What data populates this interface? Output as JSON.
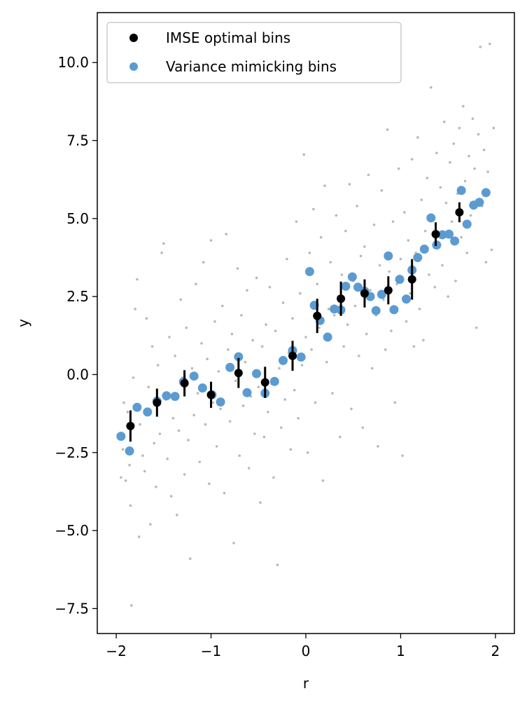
{
  "chart_data": {
    "type": "scatter",
    "xlabel": "r",
    "ylabel": "y",
    "xlim": [
      -2.2,
      2.2
    ],
    "ylim": [
      -8.3,
      11.6
    ],
    "x_ticks": [
      -2,
      -1,
      0,
      1,
      2
    ],
    "x_tick_labels": [
      "−2",
      "−1",
      "0",
      "1",
      "2"
    ],
    "y_ticks": [
      -7.5,
      -5.0,
      -2.5,
      0.0,
      2.5,
      5.0,
      7.5,
      10.0
    ],
    "y_tick_labels": [
      "−7.5",
      "−5.0",
      "−2.5",
      "0.0",
      "2.5",
      "5.0",
      "7.5",
      "10.0"
    ],
    "grid": false,
    "legend": {
      "position": "top-left",
      "entries": [
        "IMSE optimal bins",
        "Variance mimicking bins"
      ]
    },
    "series": [
      {
        "name": "IMSE optimal bins",
        "color": "#000000",
        "points": [
          {
            "x": -1.85,
            "y": -1.65,
            "yerr": 0.5
          },
          {
            "x": -1.57,
            "y": -0.9,
            "yerr": 0.45
          },
          {
            "x": -1.28,
            "y": -0.28,
            "yerr": 0.42
          },
          {
            "x": -1.0,
            "y": -0.65,
            "yerr": 0.42
          },
          {
            "x": -0.71,
            "y": 0.05,
            "yerr": 0.48
          },
          {
            "x": -0.43,
            "y": -0.25,
            "yerr": 0.5
          },
          {
            "x": -0.14,
            "y": 0.6,
            "yerr": 0.48
          },
          {
            "x": 0.12,
            "y": 1.88,
            "yerr": 0.55
          },
          {
            "x": 0.37,
            "y": 2.43,
            "yerr": 0.55
          },
          {
            "x": 0.62,
            "y": 2.6,
            "yerr": 0.45
          },
          {
            "x": 0.87,
            "y": 2.7,
            "yerr": 0.45
          },
          {
            "x": 1.12,
            "y": 3.05,
            "yerr": 0.65
          },
          {
            "x": 1.37,
            "y": 4.5,
            "yerr": 0.38
          },
          {
            "x": 1.62,
            "y": 5.2,
            "yerr": 0.32
          }
        ]
      },
      {
        "name": "Variance mimicking bins",
        "color": "#5b9bd1",
        "points": [
          {
            "x": -1.95,
            "y": -1.98
          },
          {
            "x": -1.86,
            "y": -2.45
          },
          {
            "x": -1.78,
            "y": -1.05
          },
          {
            "x": -1.67,
            "y": -1.2
          },
          {
            "x": -1.57,
            "y": -0.85
          },
          {
            "x": -1.47,
            "y": -0.68
          },
          {
            "x": -1.38,
            "y": -0.7
          },
          {
            "x": -1.29,
            "y": -0.23
          },
          {
            "x": -1.18,
            "y": -0.05
          },
          {
            "x": -1.09,
            "y": -0.43
          },
          {
            "x": -0.99,
            "y": -0.65
          },
          {
            "x": -0.9,
            "y": -0.88
          },
          {
            "x": -0.8,
            "y": 0.23
          },
          {
            "x": -0.71,
            "y": 0.57
          },
          {
            "x": -0.62,
            "y": -0.58
          },
          {
            "x": -0.52,
            "y": 0.03
          },
          {
            "x": -0.43,
            "y": -0.6
          },
          {
            "x": -0.33,
            "y": -0.22
          },
          {
            "x": -0.24,
            "y": 0.45
          },
          {
            "x": -0.14,
            "y": 0.77
          },
          {
            "x": -0.05,
            "y": 0.56
          },
          {
            "x": 0.04,
            "y": 3.3
          },
          {
            "x": 0.09,
            "y": 2.22
          },
          {
            "x": 0.15,
            "y": 1.73
          },
          {
            "x": 0.23,
            "y": 1.2
          },
          {
            "x": 0.3,
            "y": 2.1
          },
          {
            "x": 0.37,
            "y": 2.07
          },
          {
            "x": 0.42,
            "y": 2.83
          },
          {
            "x": 0.49,
            "y": 3.13
          },
          {
            "x": 0.55,
            "y": 2.8
          },
          {
            "x": 0.62,
            "y": 2.67
          },
          {
            "x": 0.68,
            "y": 2.5
          },
          {
            "x": 0.74,
            "y": 2.05
          },
          {
            "x": 0.8,
            "y": 2.57
          },
          {
            "x": 0.87,
            "y": 3.8
          },
          {
            "x": 0.93,
            "y": 2.08
          },
          {
            "x": 0.99,
            "y": 3.05
          },
          {
            "x": 1.06,
            "y": 2.42
          },
          {
            "x": 1.12,
            "y": 3.35
          },
          {
            "x": 1.18,
            "y": 3.75
          },
          {
            "x": 1.25,
            "y": 4.02
          },
          {
            "x": 1.32,
            "y": 5.02
          },
          {
            "x": 1.38,
            "y": 4.15
          },
          {
            "x": 1.44,
            "y": 4.48
          },
          {
            "x": 1.51,
            "y": 4.5
          },
          {
            "x": 1.57,
            "y": 4.28
          },
          {
            "x": 1.64,
            "y": 5.9
          },
          {
            "x": 1.7,
            "y": 4.82
          },
          {
            "x": 1.77,
            "y": 5.43
          },
          {
            "x": 1.83,
            "y": 5.52
          },
          {
            "x": 1.9,
            "y": 5.83
          }
        ]
      },
      {
        "name": "",
        "color": "#b8b8b8",
        "points": [
          {
            "x": -1.95,
            "y": -3.3
          },
          {
            "x": -1.93,
            "y": -2.4
          },
          {
            "x": -1.92,
            "y": -0.9
          },
          {
            "x": -1.9,
            "y": -3.4
          },
          {
            "x": -1.88,
            "y": -1.2
          },
          {
            "x": -1.86,
            "y": -2.9
          },
          {
            "x": -1.85,
            "y": -4.2
          },
          {
            "x": -1.84,
            "y": -7.4
          },
          {
            "x": -1.82,
            "y": -0.1
          },
          {
            "x": -1.8,
            "y": 2.1
          },
          {
            "x": -1.78,
            "y": 3.05
          },
          {
            "x": -1.76,
            "y": -5.2
          },
          {
            "x": -1.75,
            "y": -1.6
          },
          {
            "x": -1.72,
            "y": -2.6
          },
          {
            "x": -1.7,
            "y": -3.1
          },
          {
            "x": -1.68,
            "y": 1.8
          },
          {
            "x": -1.66,
            "y": -0.4
          },
          {
            "x": -1.64,
            "y": -4.8
          },
          {
            "x": -1.62,
            "y": 0.9
          },
          {
            "x": -1.6,
            "y": -2.2
          },
          {
            "x": -1.58,
            "y": -3.6
          },
          {
            "x": -1.56,
            "y": 0.3
          },
          {
            "x": -1.54,
            "y": -1.9
          },
          {
            "x": -1.52,
            "y": 3.9
          },
          {
            "x": -1.5,
            "y": 4.2
          },
          {
            "x": -1.48,
            "y": -0.8
          },
          {
            "x": -1.46,
            "y": -2.7
          },
          {
            "x": -1.44,
            "y": 1.2
          },
          {
            "x": -1.42,
            "y": -3.9
          },
          {
            "x": -1.4,
            "y": -1.4
          },
          {
            "x": -1.38,
            "y": 0.6
          },
          {
            "x": -1.36,
            "y": -4.5
          },
          {
            "x": -1.34,
            "y": -1.8
          },
          {
            "x": -1.32,
            "y": 2.4
          },
          {
            "x": -1.3,
            "y": -0.1
          },
          {
            "x": -1.28,
            "y": -3.2
          },
          {
            "x": -1.26,
            "y": 1.5
          },
          {
            "x": -1.24,
            "y": -2.1
          },
          {
            "x": -1.22,
            "y": -5.9
          },
          {
            "x": -1.2,
            "y": 0.2
          },
          {
            "x": -1.18,
            "y": -1.3
          },
          {
            "x": -1.16,
            "y": 2.9
          },
          {
            "x": -1.14,
            "y": -0.6
          },
          {
            "x": -1.12,
            "y": -2.8
          },
          {
            "x": -1.1,
            "y": 1.0
          },
          {
            "x": -1.08,
            "y": 3.6
          },
          {
            "x": -1.06,
            "y": -1.6
          },
          {
            "x": -1.04,
            "y": 0.5
          },
          {
            "x": -1.02,
            "y": -3.5
          },
          {
            "x": -1.0,
            "y": 4.3
          },
          {
            "x": -0.98,
            "y": -0.9
          },
          {
            "x": -0.96,
            "y": 1.7
          },
          {
            "x": -0.94,
            "y": -2.3
          },
          {
            "x": -0.92,
            "y": 0.1
          },
          {
            "x": -0.9,
            "y": -1.1
          },
          {
            "x": -0.88,
            "y": 2.2
          },
          {
            "x": -0.86,
            "y": -3.8
          },
          {
            "x": -0.84,
            "y": 4.5
          },
          {
            "x": -0.82,
            "y": 0.8
          },
          {
            "x": -0.8,
            "y": -1.5
          },
          {
            "x": -0.78,
            "y": 1.3
          },
          {
            "x": -0.76,
            "y": -5.4
          },
          {
            "x": -0.74,
            "y": -0.2
          },
          {
            "x": -0.72,
            "y": 3.4
          },
          {
            "x": -0.7,
            "y": -2.6
          },
          {
            "x": -0.68,
            "y": 1.9
          },
          {
            "x": -0.66,
            "y": -1.0
          },
          {
            "x": -0.64,
            "y": 0.4
          },
          {
            "x": -0.62,
            "y": 2.7
          },
          {
            "x": -0.6,
            "y": -3.0
          },
          {
            "x": -0.58,
            "y": -0.7
          },
          {
            "x": -0.56,
            "y": 1.1
          },
          {
            "x": -0.54,
            "y": -1.9
          },
          {
            "x": -0.52,
            "y": 3.1
          },
          {
            "x": -0.5,
            "y": -0.4
          },
          {
            "x": -0.48,
            "y": -4.1
          },
          {
            "x": -0.46,
            "y": 0.9
          },
          {
            "x": -0.44,
            "y": -2.0
          },
          {
            "x": -0.42,
            "y": 1.6
          },
          {
            "x": -0.4,
            "y": -1.2
          },
          {
            "x": -0.38,
            "y": 2.8
          },
          {
            "x": -0.36,
            "y": -0.3
          },
          {
            "x": -0.34,
            "y": -3.3
          },
          {
            "x": -0.32,
            "y": 1.4
          },
          {
            "x": -0.3,
            "y": -6.1
          },
          {
            "x": -0.28,
            "y": 0.2
          },
          {
            "x": -0.26,
            "y": -1.7
          },
          {
            "x": -0.24,
            "y": 2.3
          },
          {
            "x": -0.22,
            "y": -0.8
          },
          {
            "x": -0.2,
            "y": 3.7
          },
          {
            "x": -0.18,
            "y": 0.7
          },
          {
            "x": -0.16,
            "y": -2.4
          },
          {
            "x": -0.14,
            "y": 1.8
          },
          {
            "x": -0.12,
            "y": -0.5
          },
          {
            "x": -0.1,
            "y": 4.9
          },
          {
            "x": -0.08,
            "y": -1.4
          },
          {
            "x": -0.06,
            "y": 2.6
          },
          {
            "x": -0.04,
            "y": 0.3
          },
          {
            "x": -0.02,
            "y": 7.05
          },
          {
            "x": 0.0,
            "y": 1.2
          },
          {
            "x": 0.02,
            "y": -2.5
          },
          {
            "x": 0.04,
            "y": 3.9
          },
          {
            "x": 0.06,
            "y": 0.8
          },
          {
            "x": 0.08,
            "y": 5.3
          },
          {
            "x": 0.1,
            "y": -0.9
          },
          {
            "x": 0.12,
            "y": 2.9
          },
          {
            "x": 0.14,
            "y": 1.5
          },
          {
            "x": 0.16,
            "y": 4.4
          },
          {
            "x": 0.18,
            "y": -3.4
          },
          {
            "x": 0.2,
            "y": 6.05
          },
          {
            "x": 0.22,
            "y": 0.4
          },
          {
            "x": 0.24,
            "y": 2.1
          },
          {
            "x": 0.26,
            "y": 3.6
          },
          {
            "x": 0.28,
            "y": -0.6
          },
          {
            "x": 0.3,
            "y": 1.9
          },
          {
            "x": 0.32,
            "y": 5.1
          },
          {
            "x": 0.34,
            "y": 2.5
          },
          {
            "x": 0.36,
            "y": -2.0
          },
          {
            "x": 0.38,
            "y": 3.2
          },
          {
            "x": 0.4,
            "y": 0.9
          },
          {
            "x": 0.42,
            "y": 4.6
          },
          {
            "x": 0.44,
            "y": 1.6
          },
          {
            "x": 0.46,
            "y": 6.1
          },
          {
            "x": 0.48,
            "y": -1.1
          },
          {
            "x": 0.5,
            "y": 3.0
          },
          {
            "x": 0.52,
            "y": 2.2
          },
          {
            "x": 0.54,
            "y": 5.4
          },
          {
            "x": 0.56,
            "y": 0.6
          },
          {
            "x": 0.58,
            "y": 3.8
          },
          {
            "x": 0.6,
            "y": -1.7
          },
          {
            "x": 0.62,
            "y": 4.1
          },
          {
            "x": 0.64,
            "y": 1.3
          },
          {
            "x": 0.66,
            "y": 6.4
          },
          {
            "x": 0.68,
            "y": 2.7
          },
          {
            "x": 0.7,
            "y": 0.2
          },
          {
            "x": 0.72,
            "y": 4.8
          },
          {
            "x": 0.74,
            "y": 1.9
          },
          {
            "x": 0.76,
            "y": -2.3
          },
          {
            "x": 0.78,
            "y": 3.5
          },
          {
            "x": 0.8,
            "y": 5.9
          },
          {
            "x": 0.82,
            "y": 2.4
          },
          {
            "x": 0.84,
            "y": 0.8
          },
          {
            "x": 0.86,
            "y": 7.85
          },
          {
            "x": 0.88,
            "y": 3.3
          },
          {
            "x": 0.9,
            "y": 1.4
          },
          {
            "x": 0.92,
            "y": 4.9
          },
          {
            "x": 0.94,
            "y": -0.9
          },
          {
            "x": 0.96,
            "y": 2.9
          },
          {
            "x": 0.98,
            "y": 6.6
          },
          {
            "x": 1.0,
            "y": 3.7
          },
          {
            "x": 1.02,
            "y": -2.6
          },
          {
            "x": 1.04,
            "y": 5.2
          },
          {
            "x": 1.06,
            "y": 1.7
          },
          {
            "x": 1.08,
            "y": 4.3
          },
          {
            "x": 1.1,
            "y": 2.6
          },
          {
            "x": 1.12,
            "y": 6.9
          },
          {
            "x": 1.14,
            "y": 0.9
          },
          {
            "x": 1.16,
            "y": 3.9
          },
          {
            "x": 1.18,
            "y": 7.6
          },
          {
            "x": 1.2,
            "y": 2.1
          },
          {
            "x": 1.22,
            "y": 5.6
          },
          {
            "x": 1.24,
            "y": 1.1
          },
          {
            "x": 1.26,
            "y": 4.6
          },
          {
            "x": 1.28,
            "y": 6.3
          },
          {
            "x": 1.3,
            "y": 3.2
          },
          {
            "x": 1.32,
            "y": 9.2
          },
          {
            "x": 1.34,
            "y": 5.0
          },
          {
            "x": 1.36,
            "y": 2.8
          },
          {
            "x": 1.38,
            "y": 7.1
          },
          {
            "x": 1.4,
            "y": 4.1
          },
          {
            "x": 1.42,
            "y": 6.0
          },
          {
            "x": 1.44,
            "y": 3.5
          },
          {
            "x": 1.46,
            "y": 8.1
          },
          {
            "x": 1.48,
            "y": 5.5
          },
          {
            "x": 1.5,
            "y": 2.5
          },
          {
            "x": 1.52,
            "y": 6.8
          },
          {
            "x": 1.54,
            "y": 4.9
          },
          {
            "x": 1.56,
            "y": 7.4
          },
          {
            "x": 1.58,
            "y": 3.0
          },
          {
            "x": 1.6,
            "y": 5.8
          },
          {
            "x": 1.62,
            "y": 7.9
          },
          {
            "x": 1.64,
            "y": 4.4
          },
          {
            "x": 1.66,
            "y": 8.6
          },
          {
            "x": 1.68,
            "y": 6.2
          },
          {
            "x": 1.7,
            "y": 3.9
          },
          {
            "x": 1.72,
            "y": 7.0
          },
          {
            "x": 1.74,
            "y": 5.1
          },
          {
            "x": 1.76,
            "y": 8.2
          },
          {
            "x": 1.78,
            "y": 6.6
          },
          {
            "x": 1.8,
            "y": 1.5
          },
          {
            "x": 1.82,
            "y": 7.7
          },
          {
            "x": 1.84,
            "y": 10.5
          },
          {
            "x": 1.86,
            "y": 5.4
          },
          {
            "x": 1.88,
            "y": 7.2
          },
          {
            "x": 1.9,
            "y": 3.6
          },
          {
            "x": 1.92,
            "y": 6.5
          },
          {
            "x": 1.94,
            "y": 10.6
          },
          {
            "x": 1.96,
            "y": 4.0
          },
          {
            "x": 1.98,
            "y": 7.9
          }
        ]
      }
    ]
  }
}
